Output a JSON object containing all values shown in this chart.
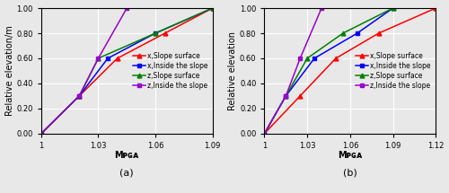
{
  "subplot_a": {
    "xlabel": "Mᴘɢᴀ",
    "ylabel": "Relative elevation/m",
    "xlim": [
      1.0,
      1.09
    ],
    "ylim": [
      0.0,
      1.0
    ],
    "xticks": [
      1.0,
      1.03,
      1.06,
      1.09
    ],
    "xticklabels": [
      "1",
      "1.03",
      "1.06",
      "1.09"
    ],
    "yticks": [
      0.0,
      0.2,
      0.4,
      0.6,
      0.8,
      1.0
    ],
    "yticklabels": [
      "0.00",
      "0.20",
      "0.40",
      "0.60",
      "0.80",
      "1.00"
    ],
    "series": [
      {
        "label": "x,Slope surface",
        "color": "#ff0000",
        "marker": "^",
        "x": [
          1.0,
          1.02,
          1.04,
          1.065,
          1.09
        ],
        "y": [
          0.0,
          0.3,
          0.6,
          0.8,
          1.0
        ]
      },
      {
        "label": "x,Inside the slope",
        "color": "#0000ff",
        "marker": "s",
        "x": [
          1.0,
          1.02,
          1.035,
          1.06,
          1.09
        ],
        "y": [
          0.0,
          0.3,
          0.6,
          0.8,
          1.0
        ]
      },
      {
        "label": "z,Slope surface",
        "color": "#008000",
        "marker": "^",
        "x": [
          1.0,
          1.02,
          1.03,
          1.06,
          1.09
        ],
        "y": [
          0.0,
          0.3,
          0.6,
          0.8,
          1.0
        ]
      },
      {
        "label": "z,Inside the slope",
        "color": "#9900cc",
        "marker": "s",
        "x": [
          1.0,
          1.02,
          1.03,
          1.045
        ],
        "y": [
          0.0,
          0.3,
          0.6,
          1.0
        ]
      }
    ]
  },
  "subplot_b": {
    "xlabel": "Mᴘɢᴀ",
    "ylabel": "Relative elevation",
    "xlim": [
      1.0,
      1.12
    ],
    "ylim": [
      0.0,
      1.0
    ],
    "xticks": [
      1.0,
      1.03,
      1.06,
      1.09,
      1.12
    ],
    "xticklabels": [
      "1",
      "1.03",
      "1.06",
      "1.09",
      "1.12"
    ],
    "yticks": [
      0.0,
      0.2,
      0.4,
      0.6,
      0.8,
      1.0
    ],
    "yticklabels": [
      "0.00",
      "0.20",
      "0.40",
      "0.60",
      "0.80",
      "1.00"
    ],
    "series": [
      {
        "label": "x,Slope surface",
        "color": "#ff0000",
        "marker": "^",
        "x": [
          1.0,
          1.025,
          1.05,
          1.08,
          1.12
        ],
        "y": [
          0.0,
          0.3,
          0.6,
          0.8,
          1.0
        ]
      },
      {
        "label": "x,Inside the slope",
        "color": "#0000ff",
        "marker": "s",
        "x": [
          1.0,
          1.015,
          1.035,
          1.065,
          1.09
        ],
        "y": [
          0.0,
          0.3,
          0.6,
          0.8,
          1.0
        ]
      },
      {
        "label": "z,Slope surface",
        "color": "#008000",
        "marker": "^",
        "x": [
          1.0,
          1.015,
          1.03,
          1.055,
          1.09
        ],
        "y": [
          0.0,
          0.3,
          0.6,
          0.8,
          1.0
        ]
      },
      {
        "label": "z,Inside the slope",
        "color": "#9900cc",
        "marker": "s",
        "x": [
          1.0,
          1.015,
          1.025,
          1.04
        ],
        "y": [
          0.0,
          0.3,
          0.6,
          1.0
        ]
      }
    ]
  },
  "legend_fontsize": 5.5,
  "axis_label_fontsize": 7,
  "tick_fontsize": 6,
  "subtitle_fontsize": 8,
  "line_width": 1.1,
  "marker_size": 3.5,
  "bg_color": "#e8e8e8",
  "grid_color": "#ffffff"
}
